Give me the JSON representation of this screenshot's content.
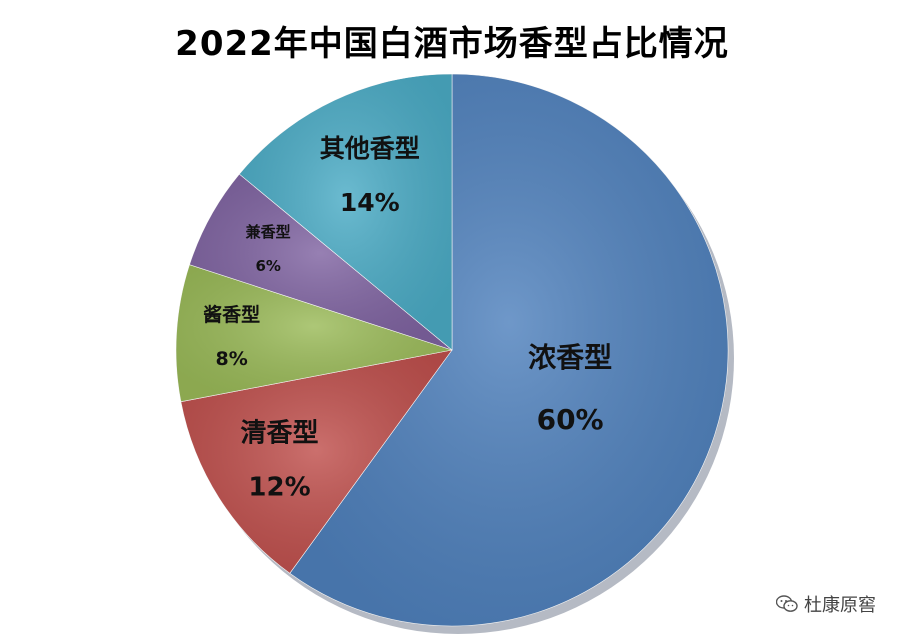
{
  "chart_data": {
    "type": "pie",
    "title": "2022年中国白酒市场香型占比情况",
    "slices": [
      {
        "label": "浓香型",
        "value": 60,
        "value_label": "60%",
        "color": "#4F81BD"
      },
      {
        "label": "清香型",
        "value": 12,
        "value_label": "12%",
        "color": "#C0504D"
      },
      {
        "label": "酱香型",
        "value": 8,
        "value_label": "8%",
        "color": "#9BBB59"
      },
      {
        "label": "兼香型",
        "value": 6,
        "value_label": "6%",
        "color": "#8064A2"
      },
      {
        "label": "其他香型",
        "value": 14,
        "value_label": "14%",
        "color": "#4BACC6"
      }
    ],
    "start": "top",
    "direction": "clockwise",
    "legend": "none"
  },
  "watermark": {
    "text": "杜康原窖",
    "icon": "wechat-icon"
  }
}
